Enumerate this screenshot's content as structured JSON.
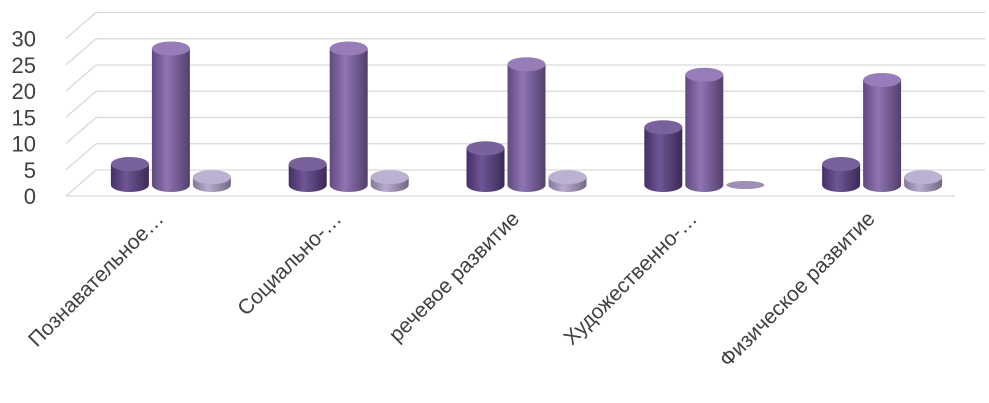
{
  "chart_data": {
    "type": "bar",
    "style": "3d-cylinder",
    "categories": [
      "Познавательное…",
      "Социально-…",
      "речевое развитие",
      "Художественно-…",
      "Физическое развитие"
    ],
    "series": [
      {
        "values": [
          4,
          4,
          7,
          11,
          4
        ],
        "color": "#5b3f86"
      },
      {
        "values": [
          26,
          26,
          23,
          21,
          20
        ],
        "color": "#8061a8"
      },
      {
        "values": [
          1.5,
          1.5,
          1.5,
          0,
          1.5
        ],
        "color": "#aea0c8"
      }
    ],
    "ylim": [
      0,
      30
    ],
    "yticks": [
      0,
      5,
      10,
      15,
      20,
      25,
      30
    ],
    "grid": true,
    "title": "",
    "xlabel": "",
    "ylabel": ""
  }
}
